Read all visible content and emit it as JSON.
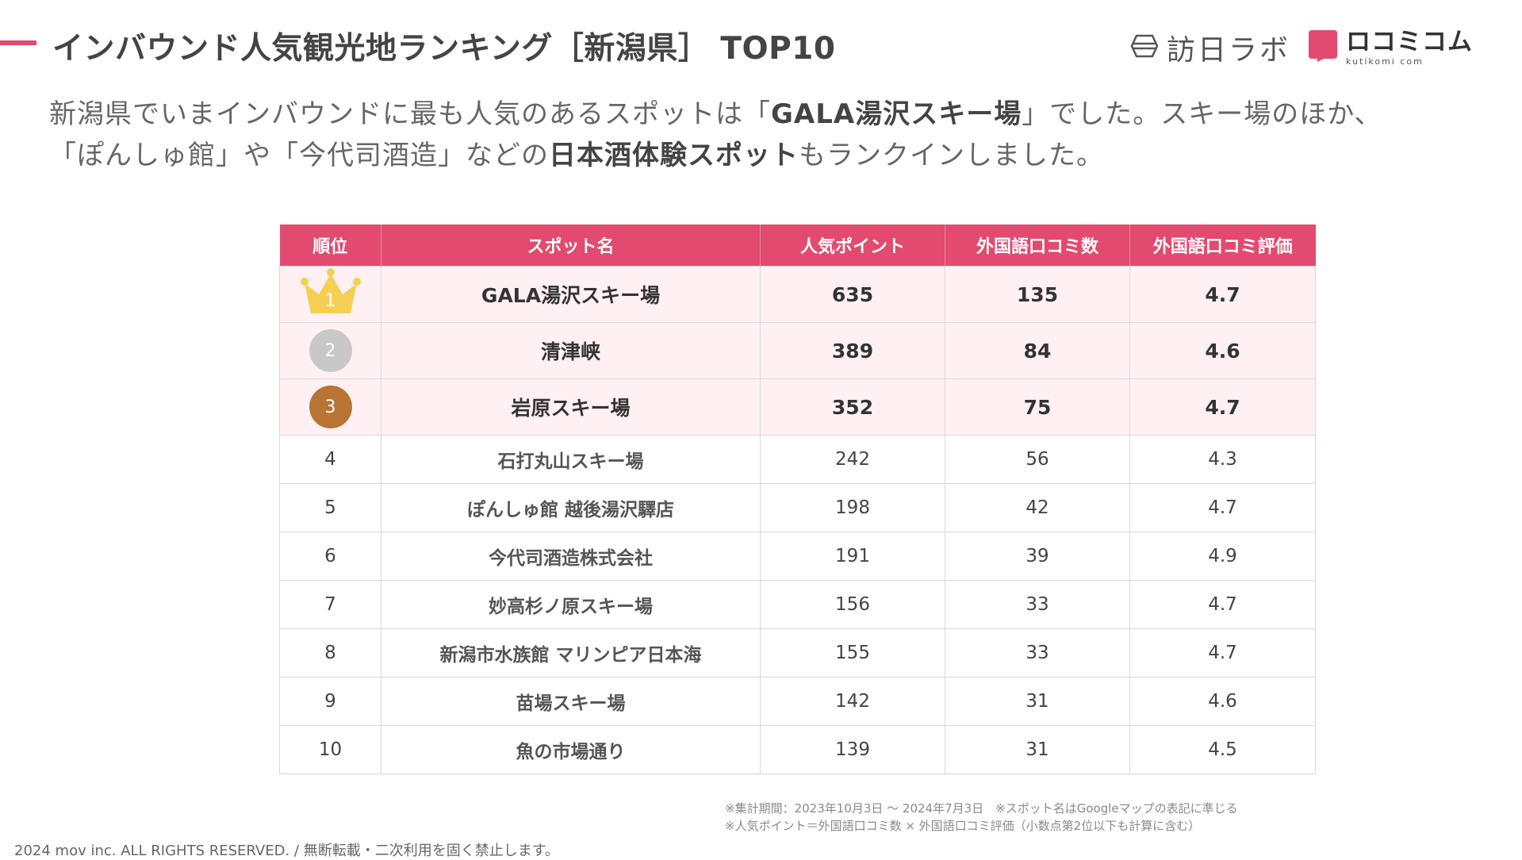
{
  "header": {
    "title": "インバウンド人気観光地ランキング［新潟県］ TOP10",
    "accent_color": "#e24a6f"
  },
  "logos": {
    "houjin": {
      "icon": "houjin-lab-logo-icon",
      "text": "訪日ラボ"
    },
    "kuchikomi": {
      "icon": "kuchikomi-logo-icon",
      "text": "ロコミコム",
      "subtext": "kutikomi com"
    }
  },
  "lead": {
    "line1_prefix": "新潟県でいまインバウンドに最も人気のあるスポットは「",
    "line1_bold": "GALA湯沢スキー場",
    "line1_suffix": "」でした。スキー場のほか、",
    "line2_prefix": "「ぽんしゅ館」や「今代司酒造」などの",
    "line2_bold": "日本酒体験スポット",
    "line2_suffix": "もランクインしました。"
  },
  "table": {
    "header_color": "#e24a6f",
    "top3_row_color": "#fff0f4",
    "medal_colors": {
      "gold": "#f5cf52",
      "silver": "#c8c8c8",
      "bronze": "#b87434"
    },
    "columns": [
      "順位",
      "スポット名",
      "人気ポイント",
      "外国語口コミ数",
      "外国語口コミ評価"
    ],
    "rows": [
      {
        "rank": "1",
        "name": "GALA湯沢スキー場",
        "points": "635",
        "reviews": "135",
        "rating": "4.7",
        "medal": "crown-icon"
      },
      {
        "rank": "2",
        "name": "清津峡",
        "points": "389",
        "reviews": "84",
        "rating": "4.6",
        "medal": "silver-medal"
      },
      {
        "rank": "3",
        "name": "岩原スキー場",
        "points": "352",
        "reviews": "75",
        "rating": "4.7",
        "medal": "bronze-medal"
      },
      {
        "rank": "4",
        "name": "石打丸山スキー場",
        "points": "242",
        "reviews": "56",
        "rating": "4.3"
      },
      {
        "rank": "5",
        "name": "ぽんしゅ館 越後湯沢驛店",
        "points": "198",
        "reviews": "42",
        "rating": "4.7"
      },
      {
        "rank": "6",
        "name": "今代司酒造株式会社",
        "points": "191",
        "reviews": "39",
        "rating": "4.9"
      },
      {
        "rank": "7",
        "name": "妙高杉ノ原スキー場",
        "points": "156",
        "reviews": "33",
        "rating": "4.7"
      },
      {
        "rank": "8",
        "name": "新潟市水族館 マリンピア日本海",
        "points": "155",
        "reviews": "33",
        "rating": "4.7"
      },
      {
        "rank": "9",
        "name": "苗場スキー場",
        "points": "142",
        "reviews": "31",
        "rating": "4.6"
      },
      {
        "rank": "10",
        "name": "魚の市場通り",
        "points": "139",
        "reviews": "31",
        "rating": "4.5"
      }
    ]
  },
  "notes": {
    "line1": "※集計期間：2023年10月3日 〜 2024年7月3日　※スポット名はGoogleマップの表記に準じる",
    "line2": "※人気ポイント＝外国語口コミ数 × 外国語口コミ評価（小数点第2位以下も計算に含む）"
  },
  "footer": {
    "copyright": "2024 mov inc. ALL RIGHTS RESERVED. / 無断転載・二次利用を固く禁止します。"
  }
}
